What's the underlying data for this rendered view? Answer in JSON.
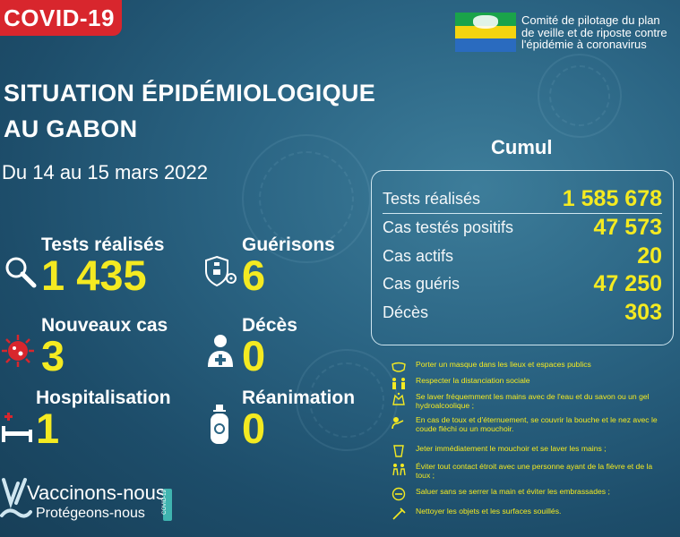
{
  "tag": "COVID-19",
  "committee": {
    "line1": "Comité de pilotage du plan",
    "line2": "de veille et de riposte contre",
    "line3": "l'épidémie à coronavirus"
  },
  "title": {
    "line1": "SITUATION ÉPIDÉMIOLOGIQUE",
    "line2": "AU GABON"
  },
  "dates": "Du 14 au 15 mars 2022",
  "stats": {
    "tests": {
      "label": "Tests réalisés",
      "value": "1 435",
      "icon": "magnifier-icon"
    },
    "guerisons": {
      "label": "Guérisons",
      "value": "6",
      "icon": "shield-virus-icon"
    },
    "nouveaux": {
      "label": "Nouveaux cas",
      "value": "3",
      "icon": "virus-icon"
    },
    "deces": {
      "label": "Décès",
      "value": "0",
      "icon": "person-cross-icon"
    },
    "hospitalisation": {
      "label": "Hospitalisation",
      "value": "1",
      "icon": "hospital-bed-icon"
    },
    "reanimation": {
      "label": "Réanimation",
      "value": "0",
      "icon": "oxygen-tank-icon"
    }
  },
  "cumul": {
    "title": "Cumul",
    "rows": [
      {
        "label": "Tests réalisés",
        "value": "1 585 678"
      },
      {
        "label": "Cas testés positifs",
        "value": "47 573"
      },
      {
        "label": "Cas actifs",
        "value": "20"
      },
      {
        "label": "Cas guéris",
        "value": "47 250"
      },
      {
        "label": "Décès",
        "value": "303"
      }
    ]
  },
  "rules": [
    {
      "text": "Porter un masque dans les lieux et espaces publics",
      "icon": "mask-icon"
    },
    {
      "text": "Respecter la distanciation sociale",
      "icon": "distance-icon"
    },
    {
      "text": "Se laver fréquemment les mains avec de l'eau et du savon ou un gel hydroalcoolique ;",
      "icon": "handwash-icon"
    },
    {
      "text": "En cas de toux et d'éternuement, se couvrir la bouche et le nez avec le coude fléchi ou un mouchoir.",
      "icon": "cough-icon"
    },
    {
      "text": "Jeter immédiatement le mouchoir et se laver les mains ;",
      "icon": "tissue-icon"
    },
    {
      "text": "Éviter tout contact étroit avec une personne ayant de la fièvre et de la toux ;",
      "icon": "no-contact-icon"
    },
    {
      "text": "Saluer sans se serrer la main et éviter les embrassades ;",
      "icon": "no-handshake-icon"
    },
    {
      "text": "Nettoyer les objets et les surfaces souillés.",
      "icon": "cleaning-icon"
    }
  ],
  "vaccin": {
    "line1": "Vaccinons-nous",
    "line2": "Protégeons-nous",
    "badge": "COVID-19"
  },
  "colors": {
    "accent": "#f4ea21",
    "tag": "#d8262d",
    "background": "#2b6584"
  }
}
